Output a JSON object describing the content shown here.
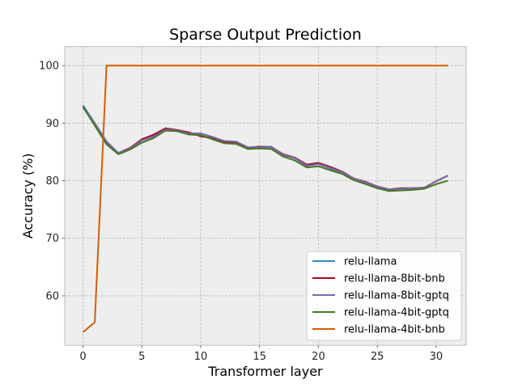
{
  "chart_data": {
    "type": "line",
    "title": "Sparse Output Prediction",
    "xlabel": "Transformer layer",
    "ylabel": "Accuracy (%)",
    "xlim": [
      -1.55,
      32.55
    ],
    "ylim": [
      51.4,
      103.3
    ],
    "xticks": [
      0,
      5,
      10,
      15,
      20,
      25,
      30
    ],
    "yticks": [
      60,
      70,
      80,
      90,
      100
    ],
    "grid": true,
    "legend_position": "lower-right",
    "x": [
      0,
      1,
      2,
      3,
      4,
      5,
      6,
      7,
      8,
      9,
      10,
      11,
      12,
      13,
      14,
      15,
      16,
      17,
      18,
      19,
      20,
      21,
      22,
      23,
      24,
      25,
      26,
      27,
      28,
      29,
      30,
      31
    ],
    "series": [
      {
        "name": "relu-llama",
        "color": "#348abd",
        "values": [
          93.1,
          90.0,
          86.8,
          84.8,
          85.6,
          87.0,
          87.7,
          89.0,
          88.6,
          88.2,
          88.2,
          87.6,
          86.8,
          86.8,
          85.8,
          85.9,
          85.9,
          84.5,
          83.9,
          82.6,
          82.9,
          82.1,
          81.3,
          80.4,
          79.7,
          78.9,
          78.4,
          78.6,
          78.6,
          78.8,
          79.9,
          80.9
        ]
      },
      {
        "name": "relu-llama-8bit-bnb",
        "color": "#a60628",
        "values": [
          92.9,
          89.8,
          86.7,
          84.8,
          85.7,
          87.2,
          88.0,
          89.1,
          88.8,
          88.4,
          87.7,
          87.4,
          86.7,
          86.7,
          85.7,
          85.9,
          85.8,
          84.6,
          84.0,
          82.8,
          83.1,
          82.4,
          81.6,
          80.4,
          79.8,
          79.0,
          78.5,
          78.7,
          78.7,
          78.8,
          79.9,
          80.9
        ]
      },
      {
        "name": "relu-llama-8bit-gptq",
        "color": "#7a68a6",
        "values": [
          93.0,
          89.9,
          86.8,
          84.8,
          85.6,
          87.0,
          87.7,
          88.9,
          88.7,
          88.2,
          88.2,
          87.6,
          86.9,
          86.8,
          85.8,
          85.8,
          85.8,
          84.5,
          83.9,
          82.6,
          82.9,
          82.2,
          81.5,
          80.4,
          79.7,
          79.0,
          78.5,
          78.6,
          78.7,
          78.8,
          79.9,
          80.9
        ]
      },
      {
        "name": "relu-llama-4bit-gptq",
        "color": "#467821",
        "values": [
          92.8,
          89.6,
          86.3,
          84.6,
          85.4,
          86.6,
          87.4,
          88.7,
          88.6,
          88.0,
          87.9,
          87.2,
          86.5,
          86.4,
          85.5,
          85.6,
          85.5,
          84.2,
          83.5,
          82.3,
          82.5,
          81.8,
          81.2,
          80.1,
          79.4,
          78.7,
          78.2,
          78.3,
          78.4,
          78.6,
          79.4,
          80.0
        ]
      },
      {
        "name": "relu-llama-4bit-bnb",
        "color": "#d55e00",
        "values": [
          53.7,
          55.4,
          100,
          100,
          100,
          100,
          100,
          100,
          100,
          100,
          100,
          100,
          100,
          100,
          100,
          100,
          100,
          100,
          100,
          100,
          100,
          100,
          100,
          100,
          100,
          100,
          100,
          100,
          100,
          100,
          100,
          100
        ]
      }
    ]
  }
}
